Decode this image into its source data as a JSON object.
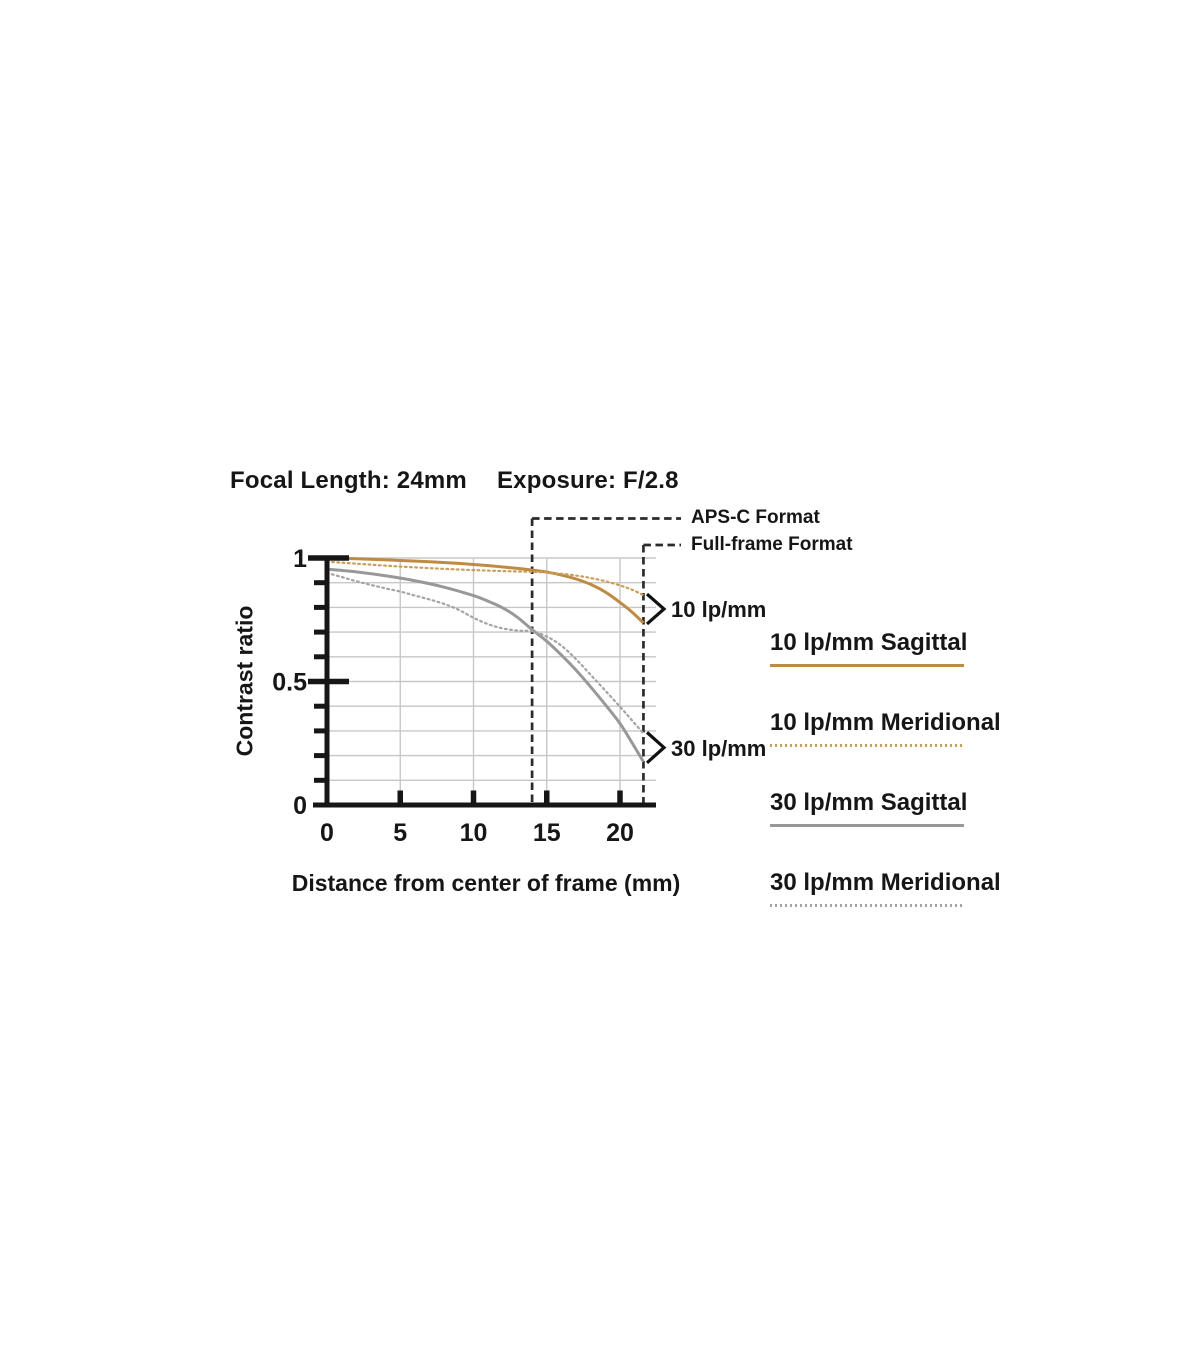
{
  "header": {
    "focal_length": "Focal Length: 24mm",
    "exposure": "Exposure: F/2.8"
  },
  "colors": {
    "orange_solid": "#bf8b42",
    "orange_dotted": "#c99e58",
    "gray_solid": "#989898",
    "gray_dotted": "#a4a4a4",
    "axis": "#161616",
    "grid": "#c7c7c7",
    "dashed_reference": "#2b2b2b",
    "text": "#161616"
  },
  "chart_data": {
    "type": "line",
    "title": "Focal Length: 24mm Exposure: F/2.8",
    "xlabel": "Distance from center of frame (mm)",
    "ylabel": "Contrast ratio",
    "xlim": [
      0,
      22.4
    ],
    "ylim": [
      0,
      1
    ],
    "x_ticks": [
      0,
      5,
      10,
      15,
      20
    ],
    "y_major_ticks": [
      0,
      0.5,
      1
    ],
    "y_minor_step": 0.1,
    "grid": true,
    "legend_position": "right",
    "series": [
      {
        "name": "10 lp/mm Sagittal",
        "style": "solid",
        "color": "#bf8b42",
        "points": [
          [
            0,
            1.0
          ],
          [
            1.5,
            0.998
          ],
          [
            3,
            0.995
          ],
          [
            5,
            0.99
          ],
          [
            7,
            0.985
          ],
          [
            9,
            0.978
          ],
          [
            11,
            0.969
          ],
          [
            13,
            0.958
          ],
          [
            14,
            0.951
          ],
          [
            15,
            0.943
          ],
          [
            16,
            0.931
          ],
          [
            17,
            0.915
          ],
          [
            18,
            0.893
          ],
          [
            19,
            0.862
          ],
          [
            20,
            0.82
          ],
          [
            20.8,
            0.782
          ],
          [
            21.6,
            0.737
          ]
        ]
      },
      {
        "name": "10 lp/mm Meridional",
        "style": "dotted",
        "color": "#c99e58",
        "points": [
          [
            0,
            0.985
          ],
          [
            2,
            0.977
          ],
          [
            4,
            0.969
          ],
          [
            6,
            0.962
          ],
          [
            8,
            0.956
          ],
          [
            10,
            0.951
          ],
          [
            12,
            0.947
          ],
          [
            14,
            0.944
          ],
          [
            15,
            0.941
          ],
          [
            16,
            0.936
          ],
          [
            17,
            0.929
          ],
          [
            18,
            0.919
          ],
          [
            19,
            0.906
          ],
          [
            20,
            0.889
          ],
          [
            20.8,
            0.872
          ],
          [
            21.6,
            0.85
          ]
        ]
      },
      {
        "name": "30 lp/mm Sagittal",
        "style": "solid",
        "color": "#989898",
        "points": [
          [
            0,
            0.955
          ],
          [
            2,
            0.944
          ],
          [
            4,
            0.928
          ],
          [
            6,
            0.908
          ],
          [
            8,
            0.882
          ],
          [
            10,
            0.848
          ],
          [
            11,
            0.825
          ],
          [
            12,
            0.798
          ],
          [
            13,
            0.76
          ],
          [
            14,
            0.71
          ],
          [
            15,
            0.663
          ],
          [
            16,
            0.607
          ],
          [
            17,
            0.546
          ],
          [
            18,
            0.478
          ],
          [
            19,
            0.406
          ],
          [
            20,
            0.33
          ],
          [
            20.8,
            0.254
          ],
          [
            21.6,
            0.175
          ]
        ]
      },
      {
        "name": "30 lp/mm Meridional",
        "style": "dotted",
        "color": "#a4a4a4",
        "points": [
          [
            0,
            0.94
          ],
          [
            1,
            0.923
          ],
          [
            2,
            0.906
          ],
          [
            3,
            0.891
          ],
          [
            4,
            0.877
          ],
          [
            5,
            0.864
          ],
          [
            6,
            0.848
          ],
          [
            7,
            0.832
          ],
          [
            8,
            0.814
          ],
          [
            9,
            0.79
          ],
          [
            10,
            0.758
          ],
          [
            11,
            0.732
          ],
          [
            12,
            0.715
          ],
          [
            13,
            0.706
          ],
          [
            14,
            0.703
          ],
          [
            15,
            0.682
          ],
          [
            16,
            0.645
          ],
          [
            17,
            0.59
          ],
          [
            18,
            0.527
          ],
          [
            19,
            0.463
          ],
          [
            20,
            0.398
          ],
          [
            20.8,
            0.344
          ],
          [
            21.6,
            0.29
          ]
        ]
      }
    ],
    "reference_lines": [
      {
        "label": "APS-C Format",
        "x": 14
      },
      {
        "label": "Full-frame Format",
        "x": 21.6
      }
    ],
    "annotations": [
      {
        "label": "10 lp/mm",
        "x": 21.6,
        "y_top": 0.85,
        "y_bottom": 0.737
      },
      {
        "label": "30 lp/mm",
        "x": 21.6,
        "y_top": 0.29,
        "y_bottom": 0.175
      }
    ]
  }
}
